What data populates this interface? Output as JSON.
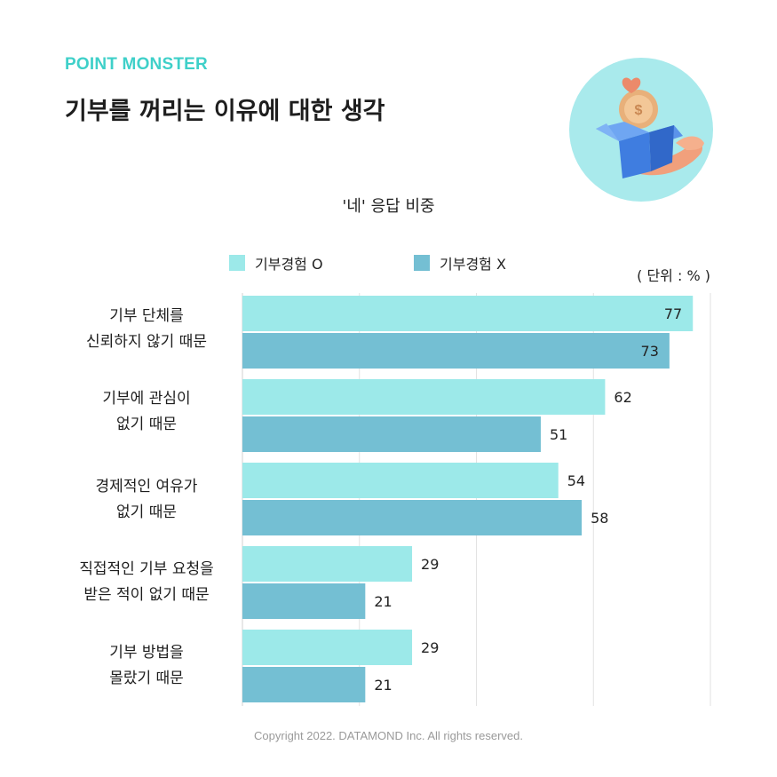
{
  "brand": {
    "name": "POINT MONSTER",
    "color": "#3fd0c9"
  },
  "title": "기부를 꺼리는 이유에 대한 생각",
  "illustration": {
    "icon": "charity-box-hands-illustration",
    "circle_color": "#a9eaec"
  },
  "copyright": "Copyright 2022. DATAMOND Inc. All rights reserved.",
  "chart_data": {
    "type": "bar",
    "orientation": "horizontal",
    "title": "'네' 응답 비중",
    "unit_label": "( 단위 : % )",
    "xlim": [
      0,
      80
    ],
    "grid": true,
    "legend_position": "top",
    "categories": [
      "기부 단체를\n신뢰하지 않기 때문",
      "기부에 관심이\n없기 때문",
      "경제적인 여유가\n없기 때문",
      "직접적인 기부 요청을\n받은 적이 없기 때문",
      "기부 방법을\n몰랐기 때문"
    ],
    "series": [
      {
        "name": "기부경험 O",
        "color": "#9ce9e9",
        "values": [
          77,
          62,
          54,
          29,
          29
        ]
      },
      {
        "name": "기부경험 X",
        "color": "#74bfd3",
        "values": [
          73,
          51,
          58,
          21,
          21
        ]
      }
    ]
  }
}
